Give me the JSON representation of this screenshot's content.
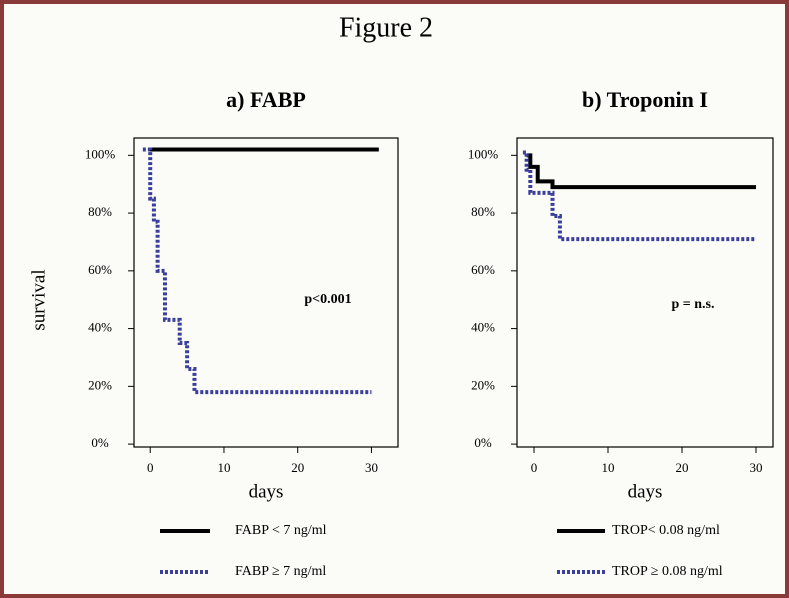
{
  "title": "Figure 2",
  "chart_data": [
    {
      "type": "line",
      "title": "a) FABP",
      "ylabel": "survival",
      "xlabel": "days",
      "xlim": [
        -2.2,
        33.6
      ],
      "ylim": [
        -1,
        106
      ],
      "xticks": [
        0,
        10,
        20,
        30
      ],
      "yticks": [
        {
          "value": 0,
          "label": "0%"
        },
        {
          "value": 20,
          "label": "20%"
        },
        {
          "value": 40,
          "label": "40%"
        },
        {
          "value": 60,
          "label": "60%"
        },
        {
          "value": 80,
          "label": "80%"
        },
        {
          "value": 100,
          "label": "100%"
        }
      ],
      "annotation": "p<0.001",
      "series": [
        {
          "name": "FABP < 7 ng/ml",
          "color": "#000000",
          "style": "solid",
          "x": [
            -0.3,
            31
          ],
          "values": [
            102,
            102
          ]
        },
        {
          "name": "FABP ≥ 7 ng/ml",
          "color": "#3b3f9c",
          "style": "dotted",
          "x": [
            -1,
            0,
            0,
            0.5,
            0.5,
            1,
            1,
            2,
            2,
            4,
            4,
            5,
            5,
            6,
            6,
            30
          ],
          "values": [
            102,
            102,
            85,
            85,
            77,
            77,
            60,
            60,
            43,
            43,
            35,
            35,
            26,
            26,
            18,
            18
          ]
        }
      ]
    },
    {
      "type": "line",
      "title": "b) Troponin I",
      "xlabel": "days",
      "xlim": [
        -2.3,
        32.3
      ],
      "ylim": [
        -1,
        106
      ],
      "xticks": [
        0,
        10,
        20,
        30
      ],
      "yticks": [
        {
          "value": 0,
          "label": "0%"
        },
        {
          "value": 20,
          "label": "20%"
        },
        {
          "value": 40,
          "label": "40%"
        },
        {
          "value": 60,
          "label": "60%"
        },
        {
          "value": 80,
          "label": "80%"
        },
        {
          "value": 100,
          "label": "100%"
        }
      ],
      "annotation": "p = n.s.",
      "series": [
        {
          "name": "TROP< 0.08 ng/ml",
          "color": "#000000",
          "style": "solid",
          "x": [
            -1,
            -0.5,
            -0.5,
            0.5,
            0.5,
            2.5,
            2.5,
            30
          ],
          "values": [
            100,
            100,
            96,
            96,
            91,
            91,
            89,
            89
          ]
        },
        {
          "name": "TROP ≥ 0.08 ng/ml",
          "color": "#3b3f9c",
          "style": "dotted",
          "x": [
            -1.5,
            -1,
            -1,
            -0.5,
            -0.5,
            2.5,
            2.5,
            3.5,
            3.5,
            30
          ],
          "values": [
            101,
            101,
            95,
            95,
            87,
            87,
            79,
            79,
            71,
            71
          ]
        }
      ]
    }
  ]
}
